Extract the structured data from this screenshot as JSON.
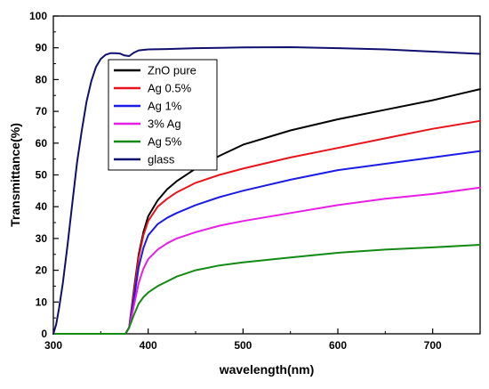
{
  "chart_data": {
    "type": "line",
    "xlabel": "wavelength(nm)",
    "ylabel": "Transmittance(%)",
    "xlim": [
      300,
      750
    ],
    "ylim": [
      0,
      100
    ],
    "x_ticks": [
      300,
      400,
      500,
      600,
      700
    ],
    "y_ticks": [
      0,
      10,
      20,
      30,
      40,
      50,
      60,
      70,
      80,
      90,
      100
    ],
    "grid": false,
    "legend_position": "top-left",
    "series": [
      {
        "name": "ZnO pure",
        "color": "#000000",
        "x": [
          300,
          376,
          380,
          385,
          390,
          395,
          400,
          410,
          420,
          430,
          450,
          475,
          500,
          550,
          600,
          650,
          700,
          750
        ],
        "y": [
          0,
          0,
          2,
          14,
          25,
          32,
          37,
          42,
          45.5,
          48,
          52,
          56,
          59.5,
          64,
          67.5,
          70.5,
          73.5,
          77
        ]
      },
      {
        "name": "Ag 0.5%",
        "color": "#e8141b",
        "x": [
          300,
          376,
          380,
          385,
          390,
          395,
          400,
          410,
          420,
          430,
          450,
          475,
          500,
          550,
          600,
          650,
          700,
          750
        ],
        "y": [
          0,
          0,
          2,
          13,
          24,
          31,
          35.5,
          40,
          42.5,
          44.5,
          47.5,
          50,
          52,
          55.5,
          58.5,
          61.5,
          64.5,
          67
        ]
      },
      {
        "name": "Ag 1%",
        "color": "#1b1be6",
        "x": [
          300,
          376,
          380,
          385,
          390,
          395,
          400,
          410,
          420,
          430,
          450,
          475,
          500,
          550,
          600,
          650,
          700,
          750
        ],
        "y": [
          0,
          0,
          2,
          11,
          21,
          27,
          31,
          34.5,
          36.5,
          38,
          40.5,
          43,
          45,
          48.5,
          51.5,
          53.5,
          55.5,
          57.5
        ]
      },
      {
        "name": "3% Ag",
        "color": "#e61ee6",
        "x": [
          300,
          376,
          380,
          385,
          390,
          395,
          400,
          410,
          420,
          430,
          450,
          475,
          500,
          550,
          600,
          650,
          700,
          750
        ],
        "y": [
          0,
          0,
          2,
          9,
          16,
          20.5,
          23.5,
          26.5,
          28.5,
          30,
          32,
          34,
          35.5,
          38,
          40.5,
          42.5,
          44,
          46
        ]
      },
      {
        "name": "Ag 5%",
        "color": "#138a13",
        "x": [
          300,
          376,
          380,
          385,
          390,
          395,
          400,
          410,
          420,
          430,
          450,
          475,
          500,
          550,
          600,
          650,
          700,
          750
        ],
        "y": [
          0,
          0,
          2,
          6,
          9.5,
          11.5,
          13,
          15,
          16.5,
          18,
          20,
          21.5,
          22.5,
          24,
          25.5,
          26.5,
          27.2,
          28
        ]
      },
      {
        "name": "glass",
        "color": "#0f0f6e",
        "x": [
          300,
          303,
          306,
          310,
          315,
          320,
          325,
          330,
          335,
          340,
          345,
          350,
          355,
          360,
          365,
          370,
          375,
          380,
          385,
          390,
          400,
          420,
          450,
          500,
          550,
          600,
          650,
          700,
          750
        ],
        "y": [
          0,
          3,
          8,
          16,
          28,
          41,
          54,
          64,
          73,
          79.5,
          84,
          86.5,
          87.8,
          88.3,
          88.3,
          88.2,
          87.6,
          87.4,
          88.5,
          89.2,
          89.5,
          89.6,
          89.9,
          90.1,
          90.2,
          89.9,
          89.5,
          88.8,
          88.1
        ]
      }
    ]
  }
}
